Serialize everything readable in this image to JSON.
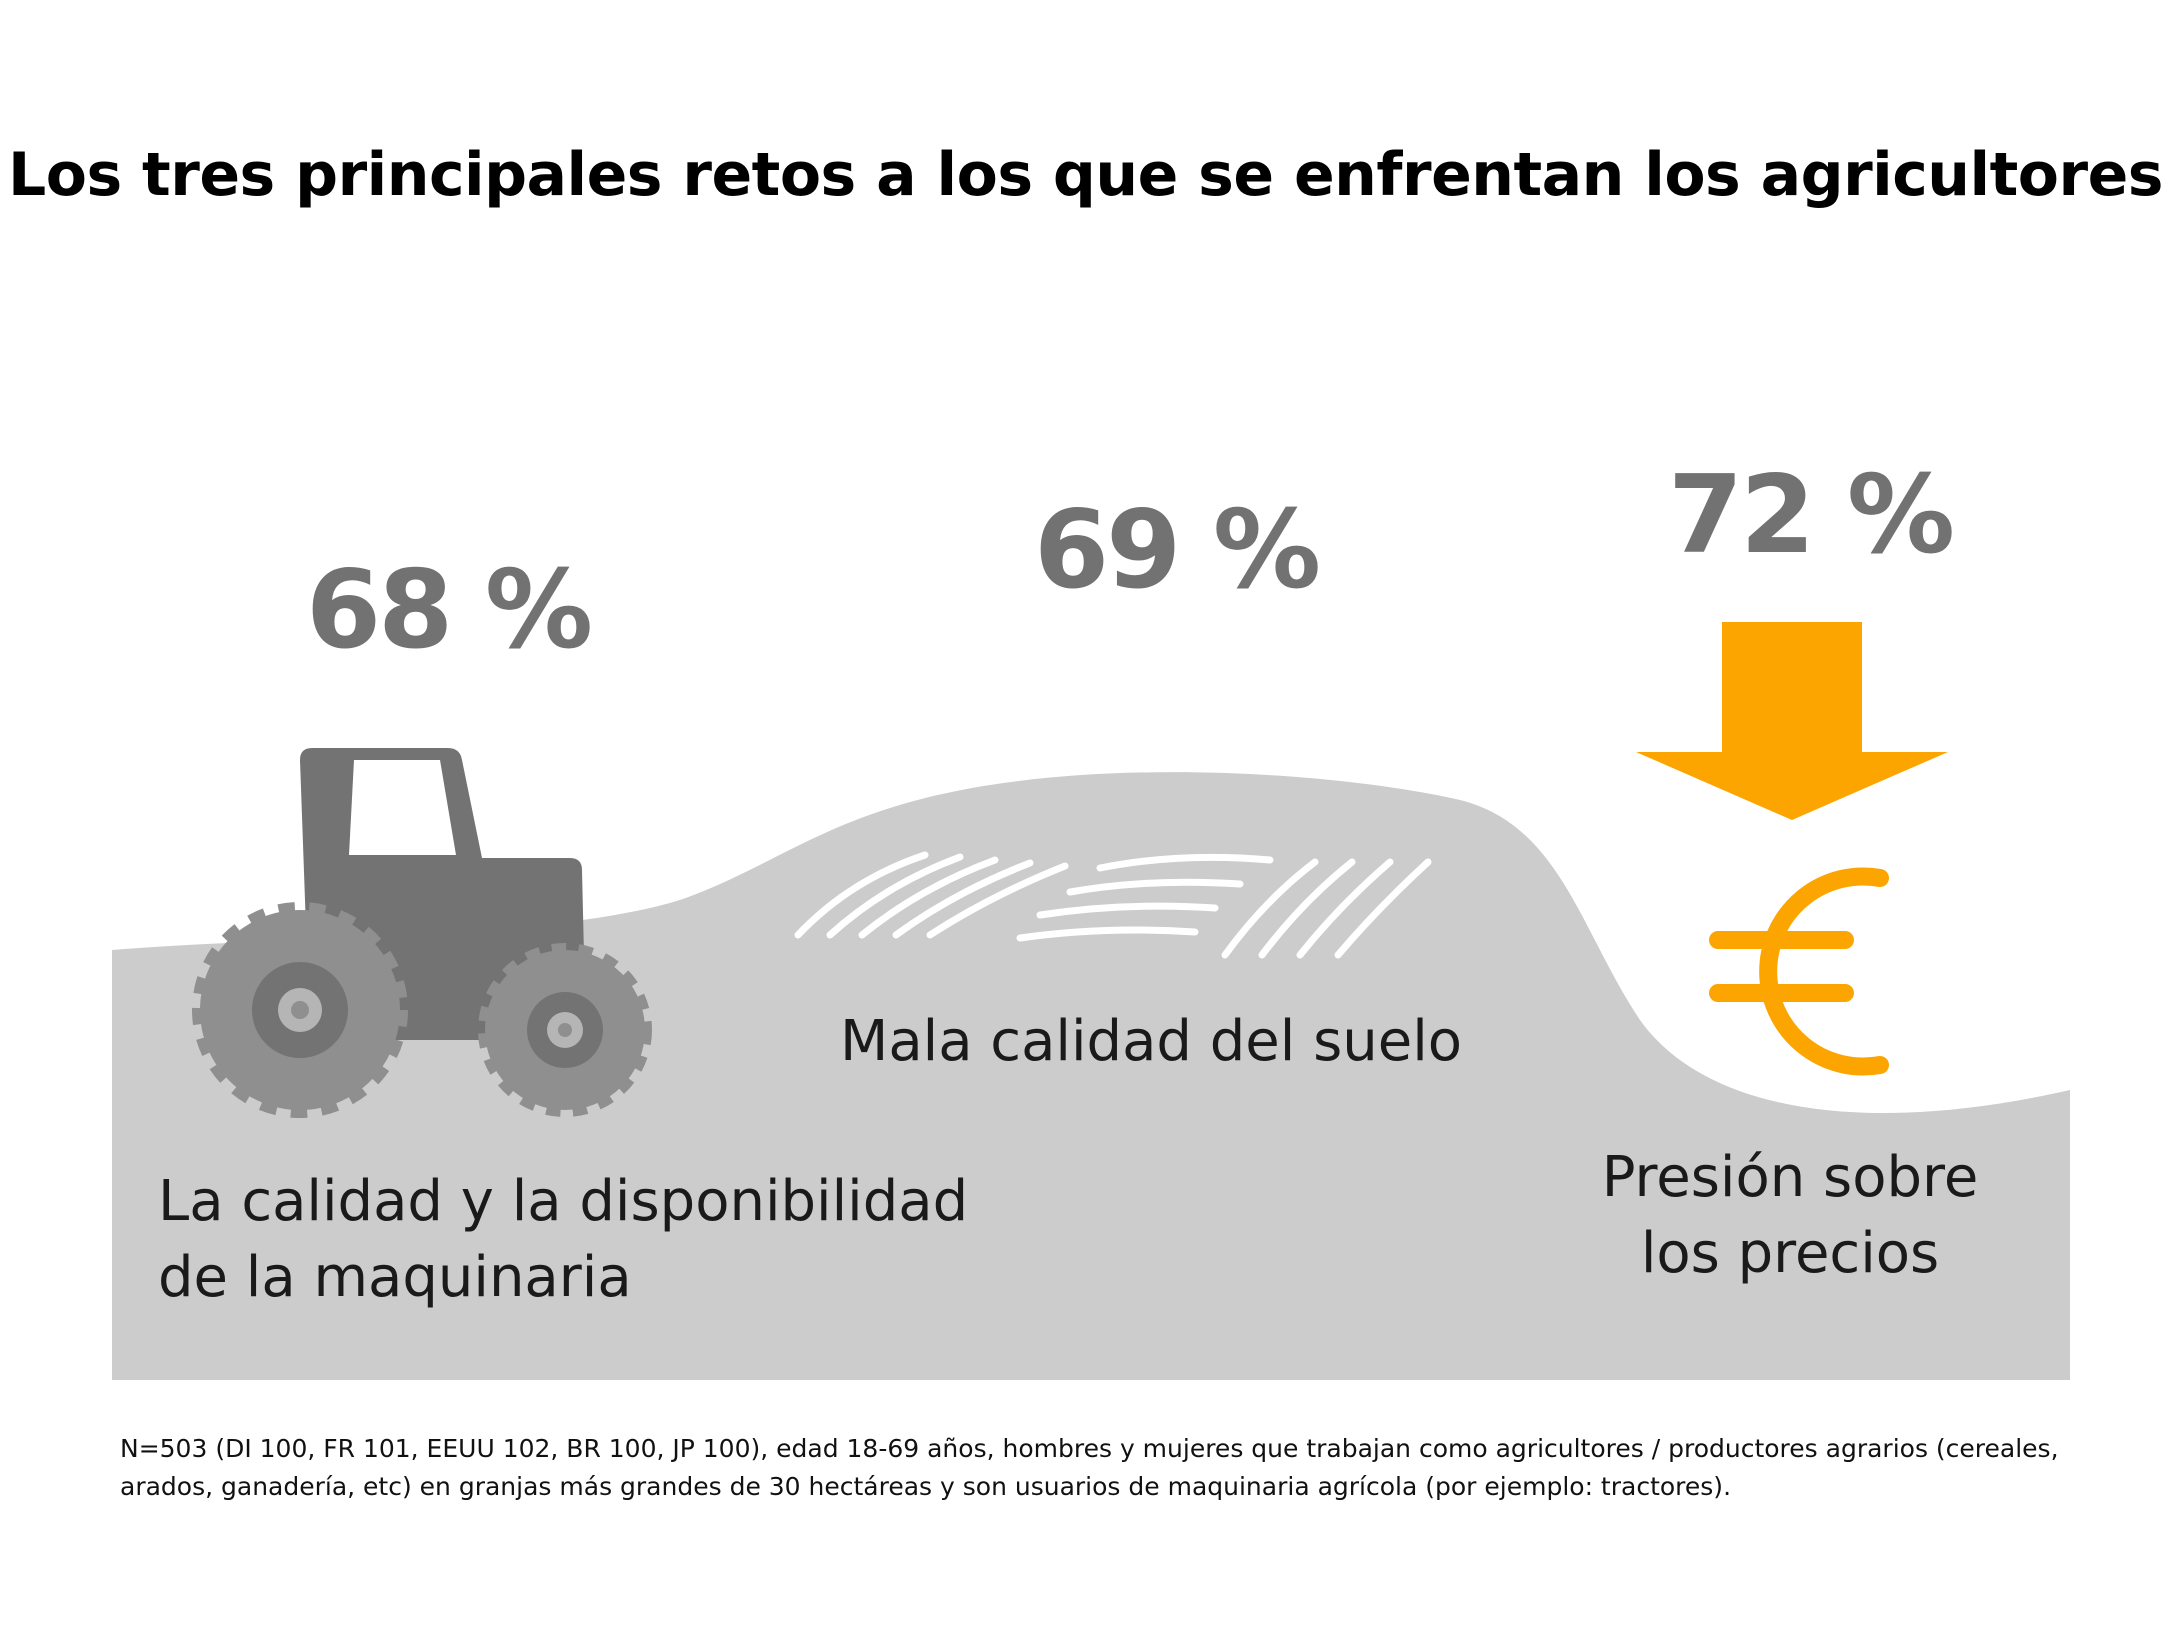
{
  "title": "Los tres principales retos a los que se enfrentan los agricultores",
  "challenges": [
    {
      "percent": "68 %",
      "label_lines": [
        "La calidad y la disponibilidad",
        "de la maquinaria"
      ],
      "icon": "tractor-icon"
    },
    {
      "percent": "69 %",
      "label_lines": [
        "Mala calidad del suelo"
      ],
      "icon": "furrows-icon"
    },
    {
      "percent": "72 %",
      "label_lines": [
        "Presión sobre",
        "los precios"
      ],
      "icon": "euro-down-arrow-icon"
    }
  ],
  "footnote": "N=503 (DI 100, FR 101, EEUU 102, BR 100, JP 100), edad 18-69 años, hombres y mujeres que trabajan como agricultores / productores agrarios (cereales, arados, ganadería, etc) en granjas más grandes de 30 hectáreas y son usuarios de maquinaria agrícola (por ejemplo: tractores).",
  "colors": {
    "field": "#cccccc",
    "icon_gray": "#737373",
    "wheel": "#8f8f8f",
    "accent": "#fca500",
    "percent_text": "#727272"
  }
}
